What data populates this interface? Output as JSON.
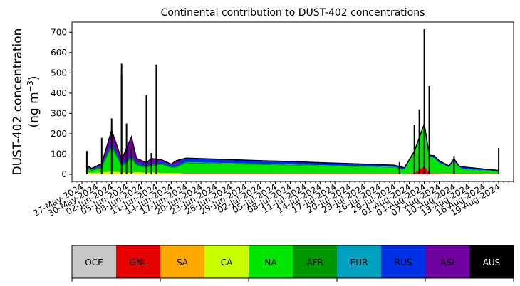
{
  "chart_data": {
    "type": "area",
    "title": "Continental contribution to DUST-402 concentrations",
    "ylabel_line1": "DUST-402 concentration",
    "ylabel_line2_prefix": "(ng m",
    "ylabel_line2_exp": "−3",
    "ylabel_line2_suffix": ")",
    "ylim": [
      -35,
      750
    ],
    "yticks": [
      0,
      100,
      200,
      300,
      400,
      500,
      600,
      700
    ],
    "xlim": [
      "2024-05-25",
      "2024-08-22"
    ],
    "xticks": [
      "27-May-2024",
      "30-May-2024",
      "02-Jun-2024",
      "05-Jun-2024",
      "08-Jun-2024",
      "11-Jun-2024",
      "14-Jun-2024",
      "17-Jun-2024",
      "20-Jun-2024",
      "23-Jun-2024",
      "26-Jun-2024",
      "29-Jun-2024",
      "02-Jul-2024",
      "05-Jul-2024",
      "08-Jul-2024",
      "11-Jul-2024",
      "14-Jul-2024",
      "17-Jul-2024",
      "20-Jul-2024",
      "23-Jul-2024",
      "26-Jul-2024",
      "29-Jul-2024",
      "01-Aug-2024",
      "04-Aug-2024",
      "07-Aug-2024",
      "10-Aug-2024",
      "13-Aug-2024",
      "16-Aug-2024",
      "19-Aug-2024"
    ],
    "stack_order": [
      "OCE",
      "GNL",
      "SA",
      "CA",
      "NA",
      "AFR",
      "EUR",
      "RUS",
      "ASI",
      "AUS"
    ],
    "series_colors": {
      "OCE": "#c8c8c8",
      "GNL": "#e60000",
      "SA": "#ffaa00",
      "CA": "#c8ff00",
      "NA": "#00e600",
      "AFR": "#009600",
      "EUR": "#00a0c0",
      "RUS": "#0030e6",
      "ASI": "#6e00a0",
      "AUS": "#000000"
    },
    "x": [
      "2024-05-28",
      "2024-05-29",
      "2024-05-31",
      "2024-06-02",
      "2024-06-04",
      "2024-06-06",
      "2024-06-07",
      "2024-06-09",
      "2024-06-10",
      "2024-06-12",
      "2024-06-14",
      "2024-06-15",
      "2024-06-17",
      "2024-07-29",
      "2024-07-31",
      "2024-08-02",
      "2024-08-04",
      "2024-08-05",
      "2024-08-06",
      "2024-08-07",
      "2024-08-09",
      "2024-08-10",
      "2024-08-11",
      "2024-08-12",
      "2024-08-19"
    ],
    "series": [
      {
        "name": "OCE",
        "values": [
          0,
          0,
          0,
          0,
          0,
          0,
          0,
          0,
          0,
          0,
          0,
          0,
          0,
          0,
          0,
          0,
          0,
          0,
          0,
          0,
          0,
          0,
          0,
          0,
          0
        ]
      },
      {
        "name": "GNL",
        "values": [
          0,
          0,
          0,
          0,
          0,
          0,
          0,
          0,
          0,
          0,
          0,
          0,
          3,
          3,
          0,
          5,
          40,
          5,
          3,
          3,
          2,
          2,
          2,
          2,
          2
        ]
      },
      {
        "name": "SA",
        "values": [
          2,
          2,
          2,
          3,
          2,
          2,
          3,
          2,
          2,
          2,
          2,
          2,
          0,
          0,
          0,
          0,
          0,
          0,
          0,
          0,
          0,
          0,
          0,
          0,
          0
        ]
      },
      {
        "name": "CA",
        "values": [
          8,
          5,
          8,
          10,
          8,
          5,
          8,
          5,
          8,
          5,
          5,
          5,
          0,
          0,
          0,
          0,
          0,
          0,
          0,
          0,
          0,
          0,
          0,
          0,
          0
        ]
      },
      {
        "name": "NA",
        "values": [
          15,
          10,
          20,
          120,
          25,
          70,
          30,
          25,
          30,
          40,
          25,
          25,
          50,
          30,
          20,
          100,
          200,
          80,
          75,
          50,
          30,
          60,
          30,
          20,
          10
        ]
      },
      {
        "name": "AFR",
        "values": [
          5,
          5,
          8,
          10,
          8,
          8,
          8,
          5,
          8,
          5,
          5,
          5,
          5,
          2,
          2,
          2,
          2,
          2,
          2,
          2,
          2,
          2,
          2,
          2,
          2
        ]
      },
      {
        "name": "EUR",
        "values": [
          0,
          0,
          0,
          0,
          0,
          0,
          0,
          0,
          0,
          0,
          0,
          0,
          2,
          2,
          2,
          2,
          2,
          2,
          2,
          2,
          2,
          2,
          2,
          2,
          2
        ]
      },
      {
        "name": "RUS",
        "values": [
          3,
          2,
          5,
          15,
          10,
          10,
          10,
          10,
          5,
          10,
          8,
          10,
          20,
          8,
          8,
          5,
          5,
          5,
          10,
          10,
          5,
          10,
          5,
          10,
          3
        ]
      },
      {
        "name": "ASI",
        "values": [
          10,
          5,
          10,
          60,
          20,
          90,
          20,
          10,
          25,
          10,
          5,
          20,
          0,
          0,
          0,
          0,
          0,
          0,
          0,
          0,
          0,
          0,
          0,
          0,
          0
        ]
      },
      {
        "name": "AUS",
        "values": [
          0,
          0,
          0,
          0,
          0,
          0,
          0,
          0,
          0,
          0,
          0,
          0,
          0,
          0,
          0,
          0,
          0,
          0,
          0,
          0,
          0,
          0,
          0,
          0,
          0
        ]
      }
    ],
    "spikes": [
      {
        "x": "2024-05-28",
        "y": 115
      },
      {
        "x": "2024-05-31",
        "y": 180
      },
      {
        "x": "2024-06-02",
        "y": 275
      },
      {
        "x": "2024-06-04",
        "y": 490
      },
      {
        "x": "2024-06-04",
        "y": 545
      },
      {
        "x": "2024-06-05",
        "y": 250
      },
      {
        "x": "2024-06-06",
        "y": 130
      },
      {
        "x": "2024-06-09",
        "y": 390
      },
      {
        "x": "2024-06-10",
        "y": 105
      },
      {
        "x": "2024-06-11",
        "y": 540
      },
      {
        "x": "2024-07-30",
        "y": 60
      },
      {
        "x": "2024-08-02",
        "y": 245
      },
      {
        "x": "2024-08-03",
        "y": 320
      },
      {
        "x": "2024-08-04",
        "y": 715
      },
      {
        "x": "2024-08-05",
        "y": 435
      },
      {
        "x": "2024-08-10",
        "y": 90
      },
      {
        "x": "2024-08-19",
        "y": 130
      }
    ]
  },
  "legend": {
    "items": [
      {
        "label": "OCE",
        "color": "#c8c8c8",
        "text_color": "#000000"
      },
      {
        "label": "GNL",
        "color": "#e60000",
        "text_color": "#000000"
      },
      {
        "label": "SA",
        "color": "#ffaa00",
        "text_color": "#000000"
      },
      {
        "label": "CA",
        "color": "#c8ff00",
        "text_color": "#000000"
      },
      {
        "label": "NA",
        "color": "#00e600",
        "text_color": "#000000"
      },
      {
        "label": "AFR",
        "color": "#009600",
        "text_color": "#000000"
      },
      {
        "label": "EUR",
        "color": "#00a0c0",
        "text_color": "#000000"
      },
      {
        "label": "RUS",
        "color": "#0030e6",
        "text_color": "#000000"
      },
      {
        "label": "ASI",
        "color": "#6e00a0",
        "text_color": "#000000"
      },
      {
        "label": "AUS",
        "color": "#000000",
        "text_color": "#ffffff"
      }
    ]
  }
}
